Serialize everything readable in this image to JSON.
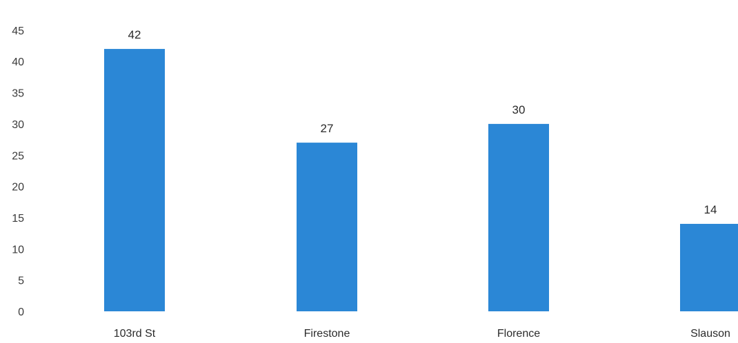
{
  "chart_data": {
    "type": "bar",
    "categories": [
      "103rd St",
      "Firestone",
      "Florence",
      "Slauson"
    ],
    "values": [
      42,
      27,
      30,
      14
    ],
    "data_labels": [
      "42",
      "27",
      "30",
      "14"
    ],
    "yticks": [
      0,
      5,
      10,
      15,
      20,
      25,
      30,
      35,
      40,
      45
    ],
    "ylim": [
      0,
      45
    ],
    "grid": false,
    "legend": "none",
    "bar_color": "#2b87d6"
  }
}
